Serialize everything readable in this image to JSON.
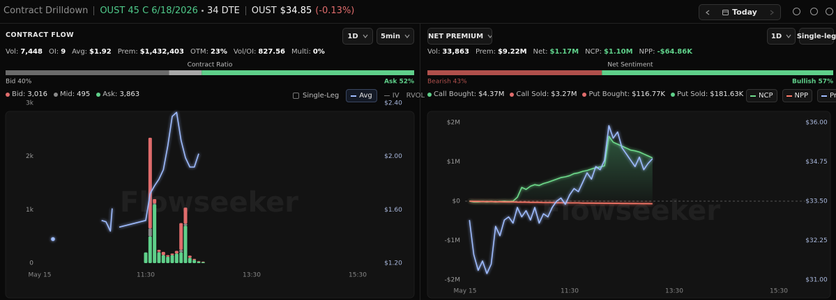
{
  "header": {
    "title": "Contract Drilldown",
    "contract": "OUST 45 C 6/18/2026",
    "dte": "34 DTE",
    "ticker": "OUST",
    "price": "$34.85",
    "change": "(-0.13%)",
    "date": "Today"
  },
  "contract_flow": {
    "tab": "CONTRACT FLOW",
    "range": "1D",
    "interval": "5min",
    "stats": [
      [
        "Vol:",
        "7,448"
      ],
      [
        "OI:",
        "9"
      ],
      [
        "Avg:",
        "$1.92"
      ],
      [
        "Prem:",
        "$1,432,403"
      ],
      [
        "OTM:",
        "23%"
      ],
      [
        "Vol/OI:",
        "827.56"
      ],
      [
        "Multi:",
        "0%"
      ]
    ],
    "ratio": {
      "title": "Contract Ratio",
      "left": {
        "value": 40,
        "label": "Bid 40%"
      },
      "right": {
        "value": 52,
        "label": "Ask 52%"
      },
      "colors": [
        "#6b6b6b",
        "#a8a8a8",
        "#5fd08a"
      ]
    },
    "toggles": [
      "Single-Leg",
      "IV",
      "RVOL"
    ],
    "chart": {
      "type": "bar",
      "watermark": "Flowseeker",
      "xlim": [
        "09:30",
        "16:00"
      ],
      "xticks": [
        {
          "value": "09:30",
          "label": "May 15"
        },
        "11:30",
        "13:30",
        "15:30"
      ],
      "ylim": [
        0,
        3000
      ],
      "yticks": [
        0,
        {
          "value": 1000,
          "label": "1k"
        },
        {
          "value": 2000,
          "label": "2k"
        },
        {
          "value": 3000,
          "label": "3k"
        }
      ],
      "y2lim": [
        1.2,
        2.4
      ],
      "y2ticks": [
        {
          "value": 1.2,
          "label": "$1.20"
        },
        {
          "value": 1.6,
          "label": "$1.60"
        },
        {
          "value": 2,
          "label": "$2.00"
        },
        {
          "value": 2.4,
          "label": "$2.40"
        }
      ],
      "x": [
        "11:30",
        "11:35",
        "11:40",
        "11:45",
        "11:50",
        "11:55",
        "12:00",
        "12:05",
        "12:10",
        "12:15",
        "12:20",
        "12:25",
        "12:30",
        "12:35"
      ],
      "series": [
        {
          "name": "Bid:",
          "count": "3,016",
          "color": "#e06c6c",
          "values": [
            0,
            1700,
            80,
            40,
            60,
            30,
            30,
            50,
            500,
            300,
            40,
            20,
            10,
            10
          ]
        },
        {
          "name": "Mid:",
          "count": "495",
          "color": "#8a8a8a",
          "values": [
            0,
            150,
            20,
            10,
            0,
            0,
            0,
            0,
            50,
            40,
            0,
            0,
            0,
            0
          ]
        },
        {
          "name": "Ask:",
          "count": "3,863",
          "color": "#5fd08a",
          "values": [
            200,
            500,
            1100,
            200,
            150,
            120,
            150,
            180,
            200,
            700,
            100,
            60,
            30,
            20
          ]
        },
        {
          "name": "Avg",
          "type": "line",
          "axis": "y2",
          "color": "#9fbcff",
          "x": [
            "09:45",
            "10:00",
            "10:40",
            "10:45",
            "10:50",
            "10:52",
            "10:55",
            "11:00",
            "11:30",
            "11:35",
            "11:40",
            "11:45",
            "11:50",
            "11:55",
            "12:00",
            "12:05",
            "12:10",
            "12:15",
            "12:20",
            "12:25",
            "12:30"
          ],
          "values": [
            1.38,
            null,
            1.52,
            1.51,
            1.44,
            1.61,
            null,
            1.47,
            1.52,
            1.72,
            1.78,
            1.83,
            1.9,
            2.08,
            2.3,
            2.33,
            2.12,
            1.99,
            1.92,
            1.92,
            2.02
          ]
        }
      ]
    }
  },
  "net_premium": {
    "tab": "NET PREMIUM",
    "range": "1D",
    "mode": "Single-leg",
    "stats": [
      [
        "Vol:",
        "33,863"
      ],
      [
        "Prem:",
        "$9.22M"
      ],
      [
        "Net:",
        "$1.17M"
      ],
      [
        "NCP:",
        "$1.10M"
      ],
      [
        "NPP:",
        "-$64.86K"
      ]
    ],
    "sentiment": {
      "title": "Net Sentiment",
      "left": {
        "value": 43,
        "label": "Bearish 43%"
      },
      "right": {
        "value": 57,
        "label": "Bullish 57%"
      },
      "colors": [
        "#b0504c",
        "#5fd08a"
      ]
    },
    "legend": [
      {
        "name": "Call Bought:",
        "value": "$4.37M",
        "color": "#5fd08a"
      },
      {
        "name": "Call Sold:",
        "value": "$3.27M",
        "color": "#e06c6c"
      },
      {
        "name": "Put Bought:",
        "value": "$116.77K",
        "color": "#e06c6c"
      },
      {
        "name": "Put Sold:",
        "value": "$181.63K",
        "color": "#5fd08a"
      }
    ],
    "chart": {
      "type": "line",
      "watermark": "Flowseeker",
      "xlim": [
        "09:30",
        "16:00"
      ],
      "xticks": [
        {
          "value": "09:30",
          "label": "May 15"
        },
        "11:30",
        "13:30",
        "15:30"
      ],
      "ylim": [
        -2000000,
        2000000
      ],
      "yticks": [
        {
          "value": 2000000,
          "label": "$2M"
        },
        {
          "value": 1000000,
          "label": "$1M"
        },
        {
          "value": 0,
          "label": "$0"
        },
        {
          "value": -1000000,
          "label": "-$1M"
        },
        {
          "value": -2000000,
          "label": "-$2M"
        }
      ],
      "y2lim": [
        31,
        36
      ],
      "y2ticks": [
        {
          "value": 36,
          "label": "$36.00"
        },
        {
          "value": 34.75,
          "label": "$34.75"
        },
        {
          "value": 33.5,
          "label": "$33.50"
        },
        {
          "value": 32.25,
          "label": "$32.25"
        },
        {
          "value": 31,
          "label": "$31.00"
        }
      ],
      "x": [
        "09:35",
        "09:40",
        "09:45",
        "09:50",
        "09:55",
        "10:00",
        "10:05",
        "10:10",
        "10:15",
        "10:20",
        "10:25",
        "10:30",
        "10:35",
        "10:40",
        "10:45",
        "10:50",
        "10:55",
        "11:00",
        "11:05",
        "11:10",
        "11:15",
        "11:20",
        "11:25",
        "11:30",
        "11:35",
        "11:40",
        "11:45",
        "11:50",
        "11:55",
        "12:00",
        "12:05",
        "12:10",
        "12:15",
        "12:20",
        "12:25",
        "12:30",
        "12:35",
        "12:40",
        "12:45",
        "12:50",
        "12:55",
        "13:00",
        "13:05"
      ],
      "series": [
        {
          "name": "NCP",
          "color": "#6fdc8c",
          "fill": true,
          "values": [
            0,
            -20000,
            -20000,
            -10000,
            -20000,
            -10000,
            -20000,
            -10000,
            0,
            -10000,
            0,
            100000,
            350000,
            300000,
            380000,
            420000,
            400000,
            450000,
            480000,
            520000,
            560000,
            600000,
            620000,
            650000,
            700000,
            720000,
            760000,
            780000,
            820000,
            850000,
            870000,
            900000,
            1650000,
            1500000,
            1450000,
            1400000,
            1350000,
            1300000,
            1280000,
            1250000,
            1200000,
            1150000,
            1100000
          ]
        },
        {
          "name": "NPP",
          "color": "#ff7a6a",
          "values": [
            0,
            -5000,
            -5000,
            -10000,
            -10000,
            -10000,
            -15000,
            -15000,
            -20000,
            -20000,
            -20000,
            -25000,
            -25000,
            -25000,
            -30000,
            -30000,
            -30000,
            -35000,
            -35000,
            -35000,
            -40000,
            -40000,
            -40000,
            -45000,
            -45000,
            -45000,
            -50000,
            -50000,
            -50000,
            -52000,
            -52000,
            -54000,
            -55000,
            -56000,
            -57000,
            -58000,
            -59000,
            -60000,
            -61000,
            -62000,
            -63000,
            -64000,
            -64860
          ]
        },
        {
          "name": "Price",
          "axis": "y2",
          "color": "#9fbcff",
          "values": [
            32.9,
            31.8,
            31.3,
            31.6,
            31.2,
            31.5,
            32.7,
            32.4,
            32.9,
            33,
            32.8,
            33.3,
            33,
            33.2,
            32.9,
            33.3,
            32.8,
            33.1,
            33,
            33.3,
            33.5,
            33.6,
            33.4,
            33.7,
            33.9,
            33.8,
            34.1,
            34.4,
            34.2,
            34.6,
            34.5,
            34.8,
            35.9,
            35.5,
            35.7,
            35.2,
            35,
            34.8,
            34.6,
            34.9,
            34.5,
            34.7,
            34.85
          ]
        }
      ]
    }
  }
}
